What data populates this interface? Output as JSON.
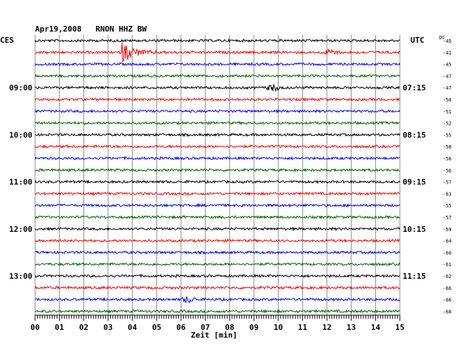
{
  "chart_data": {
    "type": "line",
    "title": "Apr19,2008   RNON HHZ BW",
    "left_timezone": "CES",
    "right_timezone": "UTC",
    "dc_header": "DC",
    "xlabel": "Zeit [min]",
    "xlim": [
      0,
      15
    ],
    "x_ticks": [
      "00",
      "01",
      "02",
      "03",
      "04",
      "05",
      "06",
      "07",
      "08",
      "09",
      "10",
      "11",
      "12",
      "13",
      "14",
      "15"
    ],
    "trace_count": 24,
    "trace_colors": [
      "#000000",
      "#ff0000",
      "#0000ff",
      "#006400"
    ],
    "left_labels": [
      {
        "trace": 4,
        "text": "09:00"
      },
      {
        "trace": 8,
        "text": "10:00"
      },
      {
        "trace": 12,
        "text": "11:00"
      },
      {
        "trace": 16,
        "text": "12:00"
      },
      {
        "trace": 20,
        "text": "13:00"
      }
    ],
    "right_labels": [
      {
        "trace": 4,
        "text": "07:15"
      },
      {
        "trace": 8,
        "text": "08:15"
      },
      {
        "trace": 12,
        "text": "09:15"
      },
      {
        "trace": 16,
        "text": "10:15"
      },
      {
        "trace": 20,
        "text": "11:15"
      }
    ],
    "dc_values": [
      "-45",
      "-41",
      "-45",
      "-47",
      "-47",
      "-50",
      "-51",
      "-52",
      "-55",
      "-58",
      "-56",
      "-56",
      "-57",
      "-63",
      "-55",
      "-57",
      "-59",
      "-64",
      "-60",
      "-61",
      "-62",
      "-66",
      "-66",
      "-68"
    ],
    "events": [
      {
        "trace": 1,
        "minute": 3.6,
        "amplitude": "large"
      },
      {
        "trace": 1,
        "minute": 12.2,
        "amplitude": "small"
      },
      {
        "trace": 4,
        "minute": 9.8,
        "amplitude": "small"
      },
      {
        "trace": 22,
        "minute": 6.3,
        "amplitude": "small"
      }
    ]
  }
}
